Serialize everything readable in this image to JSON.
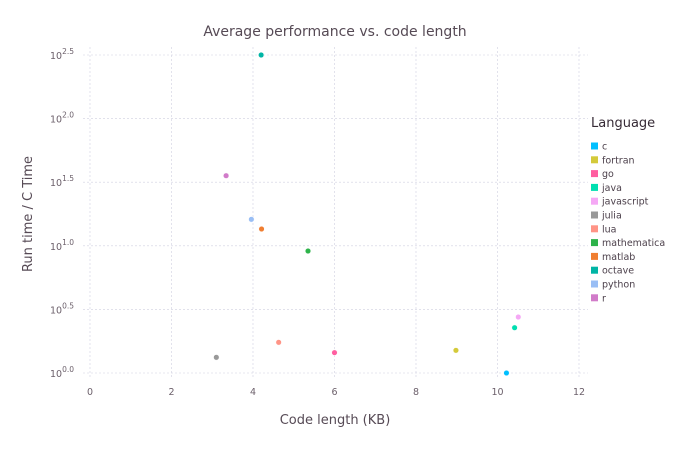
{
  "chart_data": {
    "type": "scatter",
    "title": "Average performance vs. code length",
    "xlabel": "Code length (KB)",
    "ylabel": "Run time / C Time",
    "xlim": [
      0,
      12
    ],
    "xticks": [
      0,
      2,
      4,
      6,
      8,
      10,
      12
    ],
    "yscale": "log10",
    "ylim_log10": [
      0.0,
      2.5
    ],
    "yticks": [
      {
        "base": "10",
        "exp": "0.0",
        "log": 0.0
      },
      {
        "base": "10",
        "exp": "0.5",
        "log": 0.5
      },
      {
        "base": "10",
        "exp": "1.0",
        "log": 1.0
      },
      {
        "base": "10",
        "exp": "1.5",
        "log": 1.5
      },
      {
        "base": "10",
        "exp": "2.0",
        "log": 2.0
      },
      {
        "base": "10",
        "exp": "2.5",
        "log": 2.5
      }
    ],
    "grid": true,
    "legend": {
      "title": "Language",
      "position": "right"
    },
    "series": [
      {
        "name": "c",
        "color": "#00BFFF",
        "x": 10.22,
        "y": 1.0,
        "log10_y": 0.0
      },
      {
        "name": "fortran",
        "color": "#D4CA3A",
        "x": 8.98,
        "y": 1.51,
        "log10_y": 0.178
      },
      {
        "name": "go",
        "color": "#FF5EA0",
        "x": 6.0,
        "y": 1.44,
        "log10_y": 0.16
      },
      {
        "name": "java",
        "color": "#00DFB0",
        "x": 10.42,
        "y": 2.27,
        "log10_y": 0.356
      },
      {
        "name": "javascript",
        "color": "#F5A8F5",
        "x": 10.51,
        "y": 2.76,
        "log10_y": 0.44
      },
      {
        "name": "julia",
        "color": "#999999",
        "x": 3.1,
        "y": 1.33,
        "log10_y": 0.123
      },
      {
        "name": "lua",
        "color": "#FF9486",
        "x": 4.63,
        "y": 1.74,
        "log10_y": 0.241
      },
      {
        "name": "mathematica",
        "color": "#2DB34A",
        "x": 5.35,
        "y": 9.1,
        "log10_y": 0.959
      },
      {
        "name": "matlab",
        "color": "#F07E31",
        "x": 4.21,
        "y": 13.6,
        "log10_y": 1.132
      },
      {
        "name": "octave",
        "color": "#00B5A5",
        "x": 4.2,
        "y": 316.0,
        "log10_y": 2.5
      },
      {
        "name": "python",
        "color": "#99BEF5",
        "x": 3.96,
        "y": 16.2,
        "log10_y": 1.208
      },
      {
        "name": "r",
        "color": "#D17BC9",
        "x": 3.34,
        "y": 35.6,
        "log10_y": 1.551
      }
    ]
  }
}
